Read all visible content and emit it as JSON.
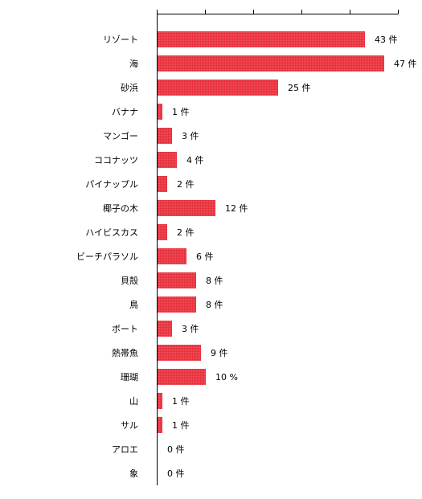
{
  "chart_data": {
    "type": "bar",
    "orientation": "horizontal",
    "title": "",
    "xlabel": "",
    "ylabel": "",
    "xlim": [
      0,
      50
    ],
    "ticks": [
      0,
      10,
      20,
      30,
      40,
      50
    ],
    "bar_color": "#e8333f",
    "categories": [
      "リゾート",
      "海",
      "砂浜",
      "バナナ",
      "マンゴー",
      "ココナッツ",
      "パイナップル",
      "椰子の木",
      "ハイビスカス",
      "ビーチパラソル",
      "貝殻",
      "鳥",
      "ボート",
      "熱帯魚",
      "珊瑚",
      "山",
      "サル",
      "アロエ",
      "象"
    ],
    "values": [
      43,
      47,
      25,
      1,
      3,
      4,
      2,
      12,
      2,
      6,
      8,
      8,
      3,
      9,
      10,
      1,
      1,
      0,
      0
    ],
    "data_labels": [
      "43 件",
      "47 件",
      "25 件",
      "1 件",
      "3 件",
      "4 件",
      "2 件",
      "12 件",
      "2 件",
      "6 件",
      "8 件",
      "8 件",
      "3 件",
      "9 件",
      "10 %",
      "1 件",
      "1 件",
      "0 件",
      "0 件"
    ]
  }
}
